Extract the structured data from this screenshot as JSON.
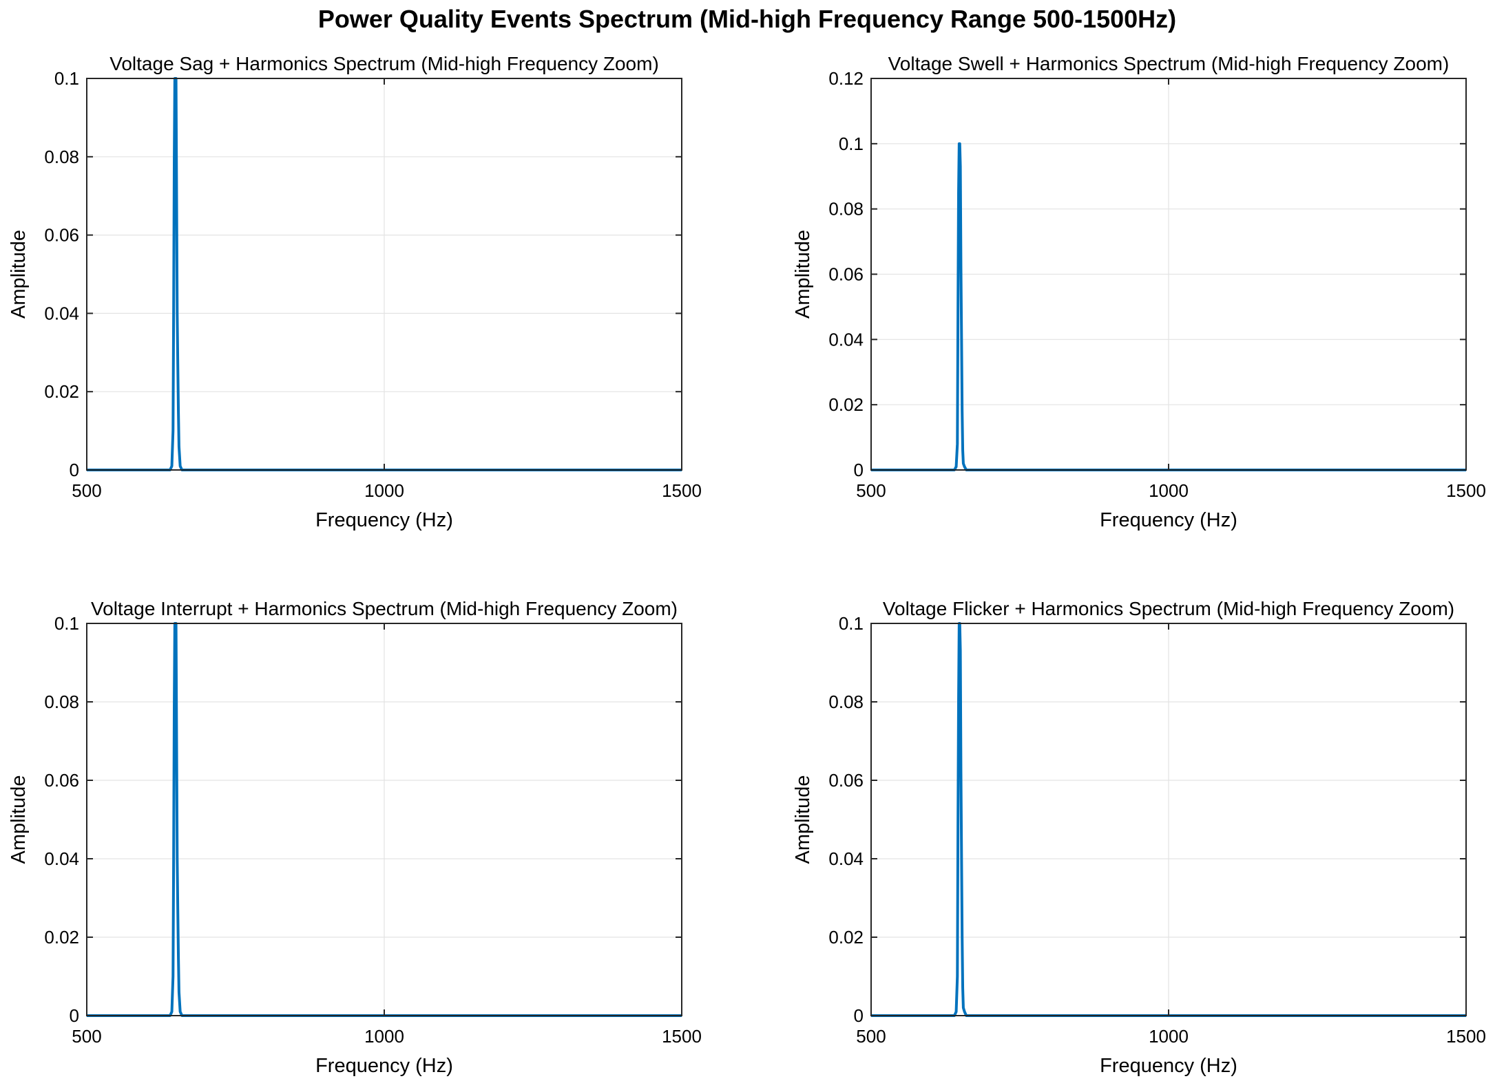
{
  "figure": {
    "title": "Power Quality Events Spectrum (Mid-high Frequency Range 500-1500Hz)"
  },
  "colors": {
    "series": "#0072bd",
    "axis": "#262626",
    "grid": "#e3e3e3"
  },
  "chart_data": [
    {
      "type": "line",
      "title": "Voltage Sag + Harmonics Spectrum (Mid-high Frequency Zoom)",
      "xlabel": "Frequency (Hz)",
      "ylabel": "Amplitude",
      "xlim": [
        500,
        1500
      ],
      "ylim": [
        0,
        0.1
      ],
      "xticks": [
        500,
        1000,
        1500
      ],
      "xtick_labels": [
        "500",
        "1000",
        "1500"
      ],
      "yticks": [
        0,
        0.02,
        0.04,
        0.06,
        0.08,
        0.1
      ],
      "ytick_labels": [
        "0",
        "0.02",
        "0.04",
        "0.06",
        "0.08",
        "0.1"
      ],
      "grid": true,
      "series": [
        {
          "x": [
            500,
            640,
            643,
            645,
            646,
            647,
            648,
            649,
            650,
            651,
            652,
            653,
            654,
            655,
            657,
            660,
            1500
          ],
          "y": [
            0,
            0,
            0.001,
            0.01,
            0.04,
            0.078,
            0.1,
            0.1,
            0.1,
            0.07,
            0.04,
            0.027,
            0.015,
            0.006,
            0.001,
            0,
            0
          ]
        }
      ]
    },
    {
      "type": "line",
      "title": "Voltage Swell + Harmonics Spectrum (Mid-high Frequency Zoom)",
      "xlabel": "Frequency (Hz)",
      "ylabel": "Amplitude",
      "xlim": [
        500,
        1500
      ],
      "ylim": [
        0,
        0.12
      ],
      "xticks": [
        500,
        1000,
        1500
      ],
      "xtick_labels": [
        "500",
        "1000",
        "1500"
      ],
      "yticks": [
        0,
        0.02,
        0.04,
        0.06,
        0.08,
        0.1,
        0.12
      ],
      "ytick_labels": [
        "0",
        "0.02",
        "0.04",
        "0.06",
        "0.08",
        "0.1",
        "0.12"
      ],
      "grid": true,
      "series": [
        {
          "x": [
            500,
            640,
            643,
            645,
            646,
            647,
            648,
            649,
            650,
            651,
            652,
            653,
            654,
            655,
            657,
            660,
            1500
          ],
          "y": [
            0,
            0,
            0.001,
            0.008,
            0.048,
            0.085,
            0.1,
            0.1,
            0.093,
            0.062,
            0.04,
            0.018,
            0.006,
            0.002,
            0.001,
            0,
            0
          ]
        }
      ]
    },
    {
      "type": "line",
      "title": "Voltage Interrupt + Harmonics Spectrum (Mid-high Frequency Zoom)",
      "xlabel": "Frequency (Hz)",
      "ylabel": "Amplitude",
      "xlim": [
        500,
        1500
      ],
      "ylim": [
        0,
        0.1
      ],
      "xticks": [
        500,
        1000,
        1500
      ],
      "xtick_labels": [
        "500",
        "1000",
        "1500"
      ],
      "yticks": [
        0,
        0.02,
        0.04,
        0.06,
        0.08,
        0.1
      ],
      "ytick_labels": [
        "0",
        "0.02",
        "0.04",
        "0.06",
        "0.08",
        "0.1"
      ],
      "grid": true,
      "series": [
        {
          "x": [
            500,
            640,
            643,
            645,
            646,
            647,
            648,
            649,
            650,
            651,
            652,
            653,
            654,
            655,
            657,
            660,
            1500
          ],
          "y": [
            0,
            0,
            0.001,
            0.01,
            0.04,
            0.078,
            0.1,
            0.1,
            0.1,
            0.07,
            0.04,
            0.027,
            0.015,
            0.006,
            0.001,
            0,
            0
          ]
        }
      ]
    },
    {
      "type": "line",
      "title": "Voltage Flicker + Harmonics Spectrum (Mid-high Frequency Zoom)",
      "xlabel": "Frequency (Hz)",
      "ylabel": "Amplitude",
      "xlim": [
        500,
        1500
      ],
      "ylim": [
        0,
        0.1
      ],
      "xticks": [
        500,
        1000,
        1500
      ],
      "xtick_labels": [
        "500",
        "1000",
        "1500"
      ],
      "yticks": [
        0,
        0.02,
        0.04,
        0.06,
        0.08,
        0.1
      ],
      "ytick_labels": [
        "0",
        "0.02",
        "0.04",
        "0.06",
        "0.08",
        "0.1"
      ],
      "grid": true,
      "series": [
        {
          "x": [
            500,
            640,
            643,
            645,
            646,
            647,
            648,
            649,
            650,
            651,
            652,
            653,
            654,
            655,
            657,
            660,
            1500
          ],
          "y": [
            0,
            0,
            0.001,
            0.01,
            0.048,
            0.08,
            0.1,
            0.1,
            0.093,
            0.062,
            0.04,
            0.02,
            0.007,
            0.002,
            0.001,
            0,
            0
          ]
        }
      ]
    }
  ]
}
